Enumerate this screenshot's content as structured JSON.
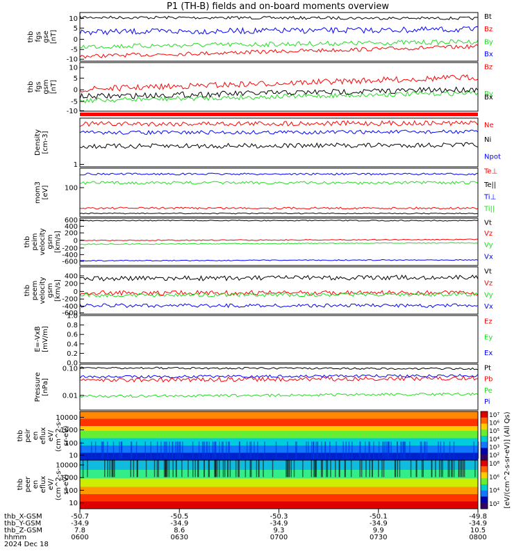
{
  "title": "P1 (TH-B) fields and on-board moments overview",
  "colors": {
    "black": "#000000",
    "red": "#ff0000",
    "green": "#22dd22",
    "blue": "#0000ff"
  },
  "chart_data": [
    {
      "type": "line",
      "id": "fgs",
      "ylabel": [
        "thb",
        "fgs",
        "gse",
        "[nT]"
      ],
      "yticks": [
        "10",
        "5",
        "0",
        "-5",
        "-10"
      ],
      "ylim": [
        -11,
        13
      ],
      "series": [
        {
          "name": "Bt",
          "color": "#000000"
        },
        {
          "name": "Bz",
          "color": "#ff0000"
        },
        {
          "name": "By",
          "color": "#22dd22"
        },
        {
          "name": "Bx",
          "color": "#0000ff"
        }
      ]
    },
    {
      "type": "line",
      "id": "fgs_gsm",
      "ylabel": [
        "thb",
        "fgs",
        "gsm",
        "[nT]"
      ],
      "yticks": [
        "10",
        "5",
        "0",
        "-5",
        "-10"
      ],
      "ylim": [
        -14,
        11
      ],
      "series": [
        {
          "name": "Bz",
          "color": "#ff0000"
        },
        {
          "name": "By",
          "color": "#22dd22"
        },
        {
          "name": "Bx",
          "color": "#000000"
        }
      ]
    },
    {
      "type": "line",
      "id": "density",
      "ylabel": [
        "Density",
        "[cm-3]"
      ],
      "yticks": [
        "1"
      ],
      "scale": "log",
      "series": [
        {
          "name": "Ne",
          "color": "#ff0000"
        },
        {
          "name": "Ni",
          "color": "#000000"
        },
        {
          "name": "Npot",
          "color": "#0000ff"
        }
      ]
    },
    {
      "type": "line",
      "id": "temp",
      "ylabel": [
        "mom3",
        "[eV]"
      ],
      "yticks": [
        "100"
      ],
      "scale": "log",
      "series": [
        {
          "name": "Te⊥",
          "color": "#ff0000"
        },
        {
          "name": "Te||",
          "color": "#000000"
        },
        {
          "name": "Ti⊥",
          "color": "#0000ff"
        },
        {
          "name": "Ti||",
          "color": "#22dd22"
        }
      ]
    },
    {
      "type": "line",
      "id": "peim",
      "ylabel": [
        "thb",
        "peim",
        "velocity",
        "gsm",
        "[km/s]"
      ],
      "yticks": [
        "600",
        "400",
        "200",
        "0",
        "-200",
        "-400",
        "-600"
      ],
      "ylim": [
        -650,
        650
      ],
      "series": [
        {
          "name": "Vt",
          "color": "#000000"
        },
        {
          "name": "Vz",
          "color": "#ff0000"
        },
        {
          "name": "Vy",
          "color": "#22dd22"
        },
        {
          "name": "Vx",
          "color": "#0000ff"
        }
      ]
    },
    {
      "type": "line",
      "id": "peem",
      "ylabel": [
        "thb",
        "peem",
        "velocity",
        "gsm",
        "[km/s]"
      ],
      "yticks": [
        "400",
        "200",
        "0",
        "-200",
        "-400",
        "-600"
      ],
      "ylim": [
        -650,
        650
      ],
      "series": [
        {
          "name": "Vt",
          "color": "#000000"
        },
        {
          "name": "Vz",
          "color": "#ff0000"
        },
        {
          "name": "Vy",
          "color": "#22dd22"
        },
        {
          "name": "Vx",
          "color": "#0000ff"
        }
      ]
    },
    {
      "type": "line",
      "id": "efield",
      "ylabel": [
        "E=-VxB",
        "[mV/m]"
      ],
      "yticks": [
        "1.0",
        "0.8",
        "0.6",
        "0.4",
        "0.2",
        "0.0"
      ],
      "ylim": [
        0,
        1
      ],
      "series": [
        {
          "name": "Ez",
          "color": "#ff0000"
        },
        {
          "name": "Ey",
          "color": "#22dd22"
        },
        {
          "name": "Ex",
          "color": "#0000ff"
        }
      ]
    },
    {
      "type": "line",
      "id": "pressure",
      "ylabel": [
        "Pressure",
        "[nPa]"
      ],
      "yticks": [
        "0.10",
        "0.01"
      ],
      "scale": "log",
      "series": [
        {
          "name": "Pt",
          "color": "#000000"
        },
        {
          "name": "Pb",
          "color": "#ff0000"
        },
        {
          "name": "Pe",
          "color": "#22dd22"
        },
        {
          "name": "Pi",
          "color": "#0000ff"
        }
      ]
    },
    {
      "type": "heatmap",
      "id": "peir",
      "ylabel": [
        "thb",
        "peir",
        "en",
        "eflux",
        "eV/",
        "(cm^2-s-",
        "sr-eV)"
      ],
      "yticks": [
        "10000",
        "1000",
        "100",
        "10"
      ],
      "colorbar_ticks": [
        "10⁷",
        "10⁶",
        "10⁵",
        "10⁴",
        "10³",
        "10²"
      ]
    },
    {
      "type": "heatmap",
      "id": "peer",
      "ylabel": [
        "thb",
        "peer",
        "en",
        "eflux",
        "eV/",
        "(cm^2-s-",
        "sr-eV)"
      ],
      "yticks": [
        "10000",
        "1000",
        "100",
        "10"
      ],
      "colorbar_ticks": [
        "10⁸",
        "10⁶",
        "10⁴",
        "10²"
      ]
    }
  ],
  "colorbar_label": "[eV/(cm^2-s-sr-eV)] (All Qs)",
  "xaxis": {
    "rows": [
      {
        "label": "thb_X-GSM",
        "values": [
          "-50.7",
          "-50.5",
          "-50.3",
          "-50.1",
          "-49.8"
        ]
      },
      {
        "label": "thb_Y-GSM",
        "values": [
          "-34.9",
          "-34.9",
          "-34.9",
          "-34.9",
          "-34.9"
        ]
      },
      {
        "label": "thb_Z-GSM",
        "values": [
          "7.8",
          "8.6",
          "9.3",
          "9.9",
          "10.5"
        ]
      },
      {
        "label": "hhmm",
        "values": [
          "0600",
          "0630",
          "0700",
          "0730",
          "0800"
        ]
      }
    ],
    "date": "2024 Dec 18"
  }
}
